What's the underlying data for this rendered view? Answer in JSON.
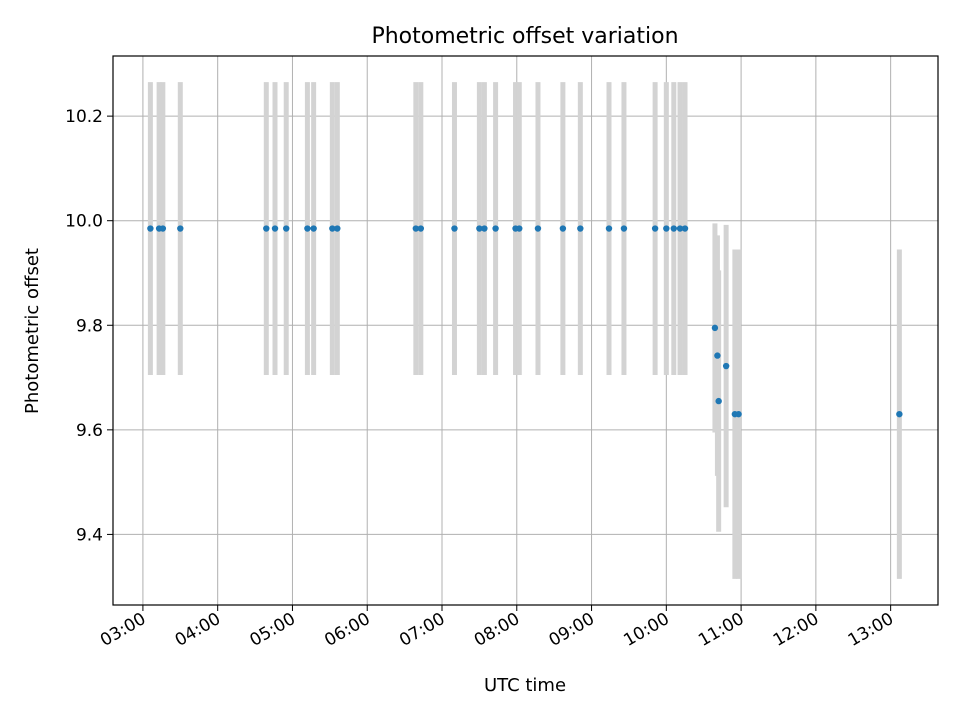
{
  "chart_data": {
    "type": "scatter",
    "title": "Photometric offset variation",
    "xlabel": "UTC time",
    "ylabel": "Photometric offset",
    "x_tick_labels": [
      "03:00",
      "04:00",
      "05:00",
      "06:00",
      "07:00",
      "08:00",
      "09:00",
      "10:00",
      "11:00",
      "12:00",
      "13:00"
    ],
    "y_tick_labels": [
      "9.4",
      "9.6",
      "9.8",
      "10.0",
      "10.2"
    ],
    "y_ticks": [
      9.4,
      9.6,
      9.8,
      10.0,
      10.2
    ],
    "xlim": [
      "02:36",
      "13:38"
    ],
    "ylim": [
      9.265,
      10.315
    ],
    "grid": true,
    "point_color": "#1f77b4",
    "errorbar_color": "#d3d3d3",
    "points": [
      {
        "x": "03:06",
        "y": 9.985,
        "err": 0.28
      },
      {
        "x": "03:13",
        "y": 9.985,
        "err": 0.28
      },
      {
        "x": "03:16",
        "y": 9.985,
        "err": 0.28
      },
      {
        "x": "03:30",
        "y": 9.985,
        "err": 0.28
      },
      {
        "x": "04:39",
        "y": 9.985,
        "err": 0.28
      },
      {
        "x": "04:46",
        "y": 9.985,
        "err": 0.28
      },
      {
        "x": "04:55",
        "y": 9.985,
        "err": 0.28
      },
      {
        "x": "05:12",
        "y": 9.985,
        "err": 0.28
      },
      {
        "x": "05:17",
        "y": 9.985,
        "err": 0.28
      },
      {
        "x": "05:32",
        "y": 9.985,
        "err": 0.28
      },
      {
        "x": "05:36",
        "y": 9.985,
        "err": 0.28
      },
      {
        "x": "06:39",
        "y": 9.985,
        "err": 0.28
      },
      {
        "x": "06:43",
        "y": 9.985,
        "err": 0.28
      },
      {
        "x": "07:10",
        "y": 9.985,
        "err": 0.28
      },
      {
        "x": "07:30",
        "y": 9.985,
        "err": 0.28
      },
      {
        "x": "07:34",
        "y": 9.985,
        "err": 0.28
      },
      {
        "x": "07:43",
        "y": 9.985,
        "err": 0.28
      },
      {
        "x": "07:59",
        "y": 9.985,
        "err": 0.28
      },
      {
        "x": "08:02",
        "y": 9.985,
        "err": 0.28
      },
      {
        "x": "08:17",
        "y": 9.985,
        "err": 0.28
      },
      {
        "x": "08:37",
        "y": 9.985,
        "err": 0.28
      },
      {
        "x": "08:51",
        "y": 9.985,
        "err": 0.28
      },
      {
        "x": "09:14",
        "y": 9.985,
        "err": 0.28
      },
      {
        "x": "09:26",
        "y": 9.985,
        "err": 0.28
      },
      {
        "x": "09:51",
        "y": 9.985,
        "err": 0.28
      },
      {
        "x": "10:00",
        "y": 9.985,
        "err": 0.28
      },
      {
        "x": "10:06",
        "y": 9.985,
        "err": 0.28
      },
      {
        "x": "10:11",
        "y": 9.985,
        "err": 0.28
      },
      {
        "x": "10:15",
        "y": 9.985,
        "err": 0.28
      },
      {
        "x": "10:39",
        "y": 9.795,
        "err": 0.2
      },
      {
        "x": "10:41",
        "y": 9.742,
        "err": 0.23
      },
      {
        "x": "10:42",
        "y": 9.655,
        "err": 0.25
      },
      {
        "x": "10:48",
        "y": 9.722,
        "err": 0.27
      },
      {
        "x": "10:55",
        "y": 9.63,
        "err": 0.315
      },
      {
        "x": "10:58",
        "y": 9.63,
        "err": 0.315
      },
      {
        "x": "13:07",
        "y": 9.63,
        "err": 0.315
      }
    ]
  }
}
